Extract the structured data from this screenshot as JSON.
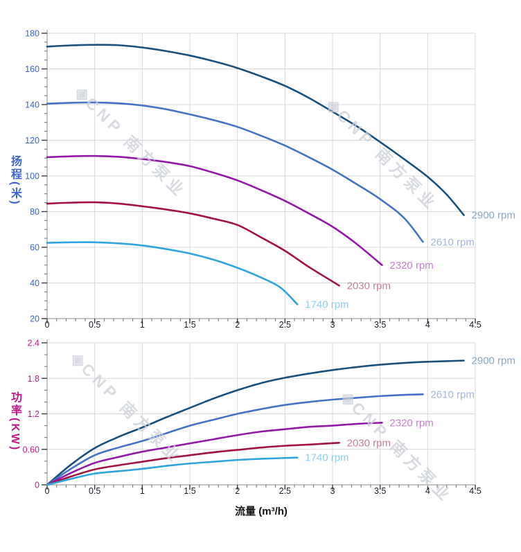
{
  "page": {
    "background": "#ffffff"
  },
  "watermark": {
    "logo_glyph": "◈",
    "text": "CNP 南方泵业"
  },
  "x_axis_title": "流量 (m³/h)",
  "chart_data": [
    {
      "type": "line",
      "name": "head-curve",
      "title": "",
      "xlabel": "流量 (m³/h)",
      "ylabel": "扬程(米)",
      "xlim": [
        0,
        4.5
      ],
      "ylim": [
        20,
        180
      ],
      "grid": true,
      "legend_position": "curve-end-labels",
      "x_major_tick_step": 0.5,
      "x_minor_tick_step": 0.1,
      "y_major_tick_step": 20,
      "y_minor_tick_step": 5,
      "x_tick_labels": [
        "0",
        "0.5",
        "1",
        "1.5",
        "2",
        "2.5",
        "3",
        "3.5",
        "4",
        "4.5"
      ],
      "y_tick_labels": [
        "20",
        "40",
        "60",
        "80",
        "100",
        "120",
        "140",
        "160",
        "180"
      ],
      "axis_text_color": "#3c63cf",
      "x_tick_text_color": "#1c1c2e",
      "grid_color": "#d9d9d9",
      "series": [
        {
          "name": "2900 rpm",
          "color": "#17507d",
          "label_color": "#8ba7c2",
          "points": [
            [
              0,
              172.5
            ],
            [
              0.25,
              173.2
            ],
            [
              0.5,
              173.5
            ],
            [
              0.75,
              173.3
            ],
            [
              1,
              172
            ],
            [
              1.25,
              170
            ],
            [
              1.5,
              167.5
            ],
            [
              1.75,
              164.3
            ],
            [
              2,
              160.5
            ],
            [
              2.25,
              155.8
            ],
            [
              2.5,
              150.5
            ],
            [
              2.75,
              143.8
            ],
            [
              3,
              136
            ],
            [
              3.25,
              128
            ],
            [
              3.5,
              119
            ],
            [
              3.75,
              109.5
            ],
            [
              4,
              99.5
            ],
            [
              4.2,
              89.5
            ],
            [
              4.38,
              78
            ]
          ]
        },
        {
          "name": "2610 rpm",
          "color": "#4472c4",
          "label_color": "#a4b6e2",
          "points": [
            [
              0,
              140.5
            ],
            [
              0.25,
              141
            ],
            [
              0.5,
              141.2
            ],
            [
              0.75,
              140.7
            ],
            [
              1,
              139.5
            ],
            [
              1.25,
              137.4
            ],
            [
              1.5,
              134.5
            ],
            [
              1.75,
              131.3
            ],
            [
              2,
              127.5
            ],
            [
              2.25,
              122.5
            ],
            [
              2.5,
              117
            ],
            [
              2.75,
              110.5
            ],
            [
              3,
              103.5
            ],
            [
              3.25,
              95.5
            ],
            [
              3.5,
              87
            ],
            [
              3.75,
              76.5
            ],
            [
              3.95,
              63
            ]
          ]
        },
        {
          "name": "2320 rpm",
          "color": "#9318a8",
          "label_color": "#c37fd0",
          "points": [
            [
              0,
              110.5
            ],
            [
              0.25,
              111
            ],
            [
              0.5,
              111.2
            ],
            [
              0.75,
              110.7
            ],
            [
              1,
              109.5
            ],
            [
              1.25,
              107.8
            ],
            [
              1.5,
              105.5
            ],
            [
              1.75,
              101.8
            ],
            [
              2,
              97.5
            ],
            [
              2.25,
              92
            ],
            [
              2.5,
              86
            ],
            [
              2.75,
              79
            ],
            [
              3,
              71.5
            ],
            [
              3.25,
              62
            ],
            [
              3.52,
              50
            ]
          ]
        },
        {
          "name": "2030 rpm",
          "color": "#a3123f",
          "label_color": "#c8809a",
          "points": [
            [
              0,
              84.5
            ],
            [
              0.25,
              85
            ],
            [
              0.5,
              85.2
            ],
            [
              0.75,
              84.5
            ],
            [
              1,
              83
            ],
            [
              1.25,
              81.2
            ],
            [
              1.5,
              79
            ],
            [
              1.75,
              76
            ],
            [
              2,
              72.5
            ],
            [
              2.25,
              65.5
            ],
            [
              2.5,
              58
            ],
            [
              2.75,
              49
            ],
            [
              3.07,
              38.5
            ]
          ]
        },
        {
          "name": "1740 rpm",
          "color": "#2fa4dc",
          "label_color": "#8fccee",
          "points": [
            [
              0,
              62.5
            ],
            [
              0.25,
              62.8
            ],
            [
              0.5,
              62.8
            ],
            [
              0.75,
              62.2
            ],
            [
              1,
              61
            ],
            [
              1.25,
              59
            ],
            [
              1.5,
              56.5
            ],
            [
              1.75,
              53
            ],
            [
              2,
              48.5
            ],
            [
              2.25,
              43
            ],
            [
              2.45,
              37.5
            ],
            [
              2.63,
              28
            ]
          ]
        }
      ]
    },
    {
      "type": "line",
      "name": "power-curve",
      "title": "",
      "xlabel": "流量 (m³/h)",
      "ylabel": "功率(KW)",
      "xlim": [
        0,
        4.5
      ],
      "ylim": [
        0,
        2.4
      ],
      "grid": true,
      "legend_position": "curve-end-labels",
      "x_major_tick_step": 0.5,
      "x_minor_tick_step": 0.1,
      "y_major_tick_step": 0.6,
      "y_minor_tick_step": 0.2,
      "x_tick_labels": [
        "0",
        "0.5",
        "1",
        "1.5",
        "2",
        "2.5",
        "3",
        "3.5",
        "4",
        "4.5"
      ],
      "y_tick_labels": [
        "0",
        "0.60",
        "1.2",
        "1.8",
        "2.4"
      ],
      "axis_text_color": "#c2188c",
      "x_tick_text_color": "#1c1c2e",
      "grid_color": "#d9d9d9",
      "series": [
        {
          "name": "2900 rpm",
          "color": "#17507d",
          "label_color": "#8ba7c2",
          "points": [
            [
              0,
              0
            ],
            [
              0.25,
              0.34
            ],
            [
              0.5,
              0.62
            ],
            [
              0.75,
              0.81
            ],
            [
              1,
              0.97
            ],
            [
              1.25,
              1.14
            ],
            [
              1.5,
              1.3
            ],
            [
              1.75,
              1.46
            ],
            [
              2,
              1.6
            ],
            [
              2.25,
              1.72
            ],
            [
              2.5,
              1.81
            ],
            [
              2.75,
              1.88
            ],
            [
              3,
              1.94
            ],
            [
              3.25,
              1.99
            ],
            [
              3.5,
              2.03
            ],
            [
              3.75,
              2.06
            ],
            [
              4,
              2.08
            ],
            [
              4.38,
              2.1
            ]
          ]
        },
        {
          "name": "2610 rpm",
          "color": "#4472c4",
          "label_color": "#a4b6e2",
          "points": [
            [
              0,
              0
            ],
            [
              0.25,
              0.27
            ],
            [
              0.5,
              0.5
            ],
            [
              0.75,
              0.63
            ],
            [
              1,
              0.74
            ],
            [
              1.25,
              0.87
            ],
            [
              1.5,
              1.0
            ],
            [
              1.75,
              1.1
            ],
            [
              2,
              1.2
            ],
            [
              2.25,
              1.28
            ],
            [
              2.5,
              1.35
            ],
            [
              2.75,
              1.4
            ],
            [
              3,
              1.44
            ],
            [
              3.25,
              1.47
            ],
            [
              3.5,
              1.5
            ],
            [
              3.75,
              1.52
            ],
            [
              3.95,
              1.53
            ]
          ]
        },
        {
          "name": "2320 rpm",
          "color": "#9318a8",
          "label_color": "#c37fd0",
          "points": [
            [
              0,
              0
            ],
            [
              0.25,
              0.2
            ],
            [
              0.5,
              0.37
            ],
            [
              0.75,
              0.47
            ],
            [
              1,
              0.56
            ],
            [
              1.25,
              0.63
            ],
            [
              1.5,
              0.7
            ],
            [
              1.75,
              0.77
            ],
            [
              2,
              0.84
            ],
            [
              2.25,
              0.9
            ],
            [
              2.5,
              0.94
            ],
            [
              2.75,
              0.98
            ],
            [
              3,
              1.0
            ],
            [
              3.25,
              1.03
            ],
            [
              3.52,
              1.05
            ]
          ]
        },
        {
          "name": "2030 rpm",
          "color": "#a3123f",
          "label_color": "#c8809a",
          "points": [
            [
              0,
              0
            ],
            [
              0.25,
              0.14
            ],
            [
              0.5,
              0.26
            ],
            [
              0.75,
              0.33
            ],
            [
              1,
              0.39
            ],
            [
              1.25,
              0.45
            ],
            [
              1.5,
              0.5
            ],
            [
              1.75,
              0.55
            ],
            [
              2,
              0.59
            ],
            [
              2.25,
              0.63
            ],
            [
              2.5,
              0.66
            ],
            [
              2.75,
              0.68
            ],
            [
              3.07,
              0.71
            ]
          ]
        },
        {
          "name": "1740 rpm",
          "color": "#2fa4dc",
          "label_color": "#8fccee",
          "points": [
            [
              0,
              0
            ],
            [
              0.25,
              0.1
            ],
            [
              0.5,
              0.19
            ],
            [
              0.75,
              0.23
            ],
            [
              1,
              0.27
            ],
            [
              1.25,
              0.32
            ],
            [
              1.5,
              0.36
            ],
            [
              1.75,
              0.39
            ],
            [
              2,
              0.42
            ],
            [
              2.25,
              0.44
            ],
            [
              2.63,
              0.46
            ]
          ]
        }
      ]
    }
  ]
}
